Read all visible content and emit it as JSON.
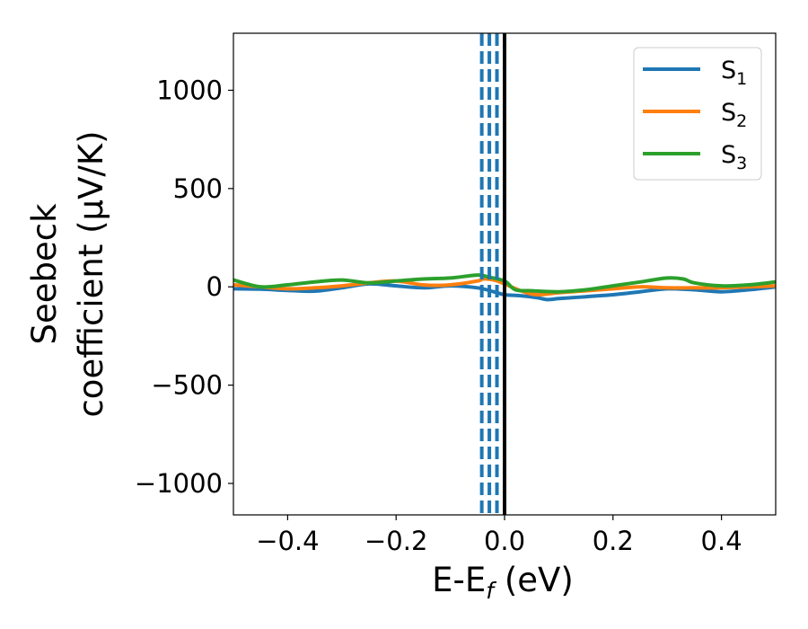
{
  "chart_data": {
    "type": "line",
    "title": "",
    "xlabel": "E-E",
    "xlabel_sub": "f",
    "xlabel_unit": " (eV)",
    "ylabel_line1": "Seebeck",
    "ylabel_line2": "coefficient  (μV/K)",
    "xlim": [
      -0.5,
      0.5
    ],
    "ylim": [
      -1160,
      1290
    ],
    "xticks": [
      -0.4,
      -0.2,
      0.0,
      0.2,
      0.4
    ],
    "xtick_labels": [
      "−0.4",
      "−0.2",
      "0.0",
      "0.2",
      "0.4"
    ],
    "yticks": [
      1000,
      500,
      0,
      -500,
      -1000
    ],
    "ytick_labels": [
      "1000",
      "500",
      "0",
      "−500",
      "−1000"
    ],
    "fermi_line": 0.0,
    "dashed_lines": [
      -0.042,
      -0.028,
      -0.014
    ],
    "legend_position": "top-right",
    "series": [
      {
        "name": "S",
        "sub": "1",
        "color": "#1f77b4",
        "x": [
          -0.5,
          -0.45,
          -0.4,
          -0.35,
          -0.3,
          -0.25,
          -0.2,
          -0.15,
          -0.1,
          -0.05,
          -0.02,
          0.0,
          0.03,
          0.06,
          0.08,
          0.1,
          0.15,
          0.2,
          0.25,
          0.3,
          0.35,
          0.4,
          0.45,
          0.5
        ],
        "y": [
          -10,
          -12,
          -18,
          -22,
          -5,
          15,
          5,
          -5,
          5,
          -5,
          -25,
          -40,
          -45,
          -55,
          -65,
          -60,
          -50,
          -40,
          -25,
          -10,
          -15,
          -25,
          -15,
          0
        ]
      },
      {
        "name": "S",
        "sub": "2",
        "color": "#ff7f0e",
        "x": [
          -0.5,
          -0.45,
          -0.4,
          -0.35,
          -0.3,
          -0.25,
          -0.2,
          -0.15,
          -0.1,
          -0.05,
          -0.04,
          -0.02,
          0.0,
          0.03,
          0.06,
          0.1,
          0.15,
          0.2,
          0.25,
          0.3,
          0.35,
          0.4,
          0.45,
          0.5
        ],
        "y": [
          10,
          0,
          -10,
          -5,
          5,
          20,
          30,
          10,
          10,
          30,
          40,
          35,
          15,
          -20,
          -40,
          -30,
          -20,
          -10,
          0,
          -5,
          -5,
          -5,
          0,
          5
        ]
      },
      {
        "name": "S",
        "sub": "3",
        "color": "#2ca02c",
        "x": [
          -0.5,
          -0.45,
          -0.4,
          -0.35,
          -0.3,
          -0.25,
          -0.2,
          -0.15,
          -0.1,
          -0.05,
          -0.03,
          0.0,
          0.02,
          0.05,
          0.1,
          0.15,
          0.2,
          0.25,
          0.3,
          0.33,
          0.35,
          0.4,
          0.45,
          0.5
        ],
        "y": [
          35,
          0,
          10,
          25,
          35,
          20,
          30,
          40,
          45,
          60,
          50,
          30,
          -15,
          -20,
          -25,
          -15,
          5,
          25,
          45,
          40,
          20,
          5,
          10,
          25
        ]
      }
    ]
  }
}
